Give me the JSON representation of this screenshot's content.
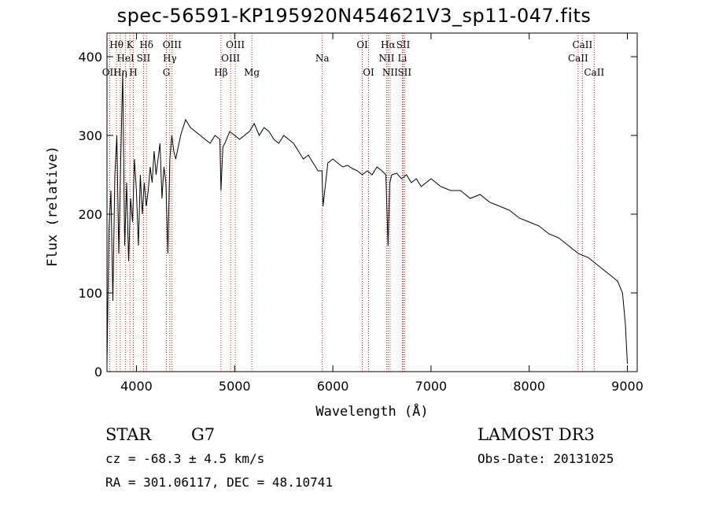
{
  "chart_data": {
    "type": "line",
    "title": "spec-56591-KP195920N454621V3_sp11-047.fits",
    "xlabel": "Wavelength (Å)",
    "ylabel": "Flux (relative)",
    "xlim": [
      3700,
      9100
    ],
    "ylim": [
      0,
      430
    ],
    "xticks": [
      4000,
      5000,
      6000,
      7000,
      8000,
      9000
    ],
    "yticks": [
      0,
      100,
      200,
      300,
      400
    ],
    "series": [
      {
        "name": "Flux",
        "x": [
          3700,
          3720,
          3740,
          3760,
          3780,
          3800,
          3820,
          3840,
          3860,
          3880,
          3900,
          3920,
          3940,
          3960,
          3980,
          4000,
          4020,
          4040,
          4060,
          4080,
          4100,
          4120,
          4140,
          4160,
          4180,
          4200,
          4220,
          4240,
          4260,
          4280,
          4300,
          4320,
          4340,
          4360,
          4380,
          4400,
          4450,
          4500,
          4550,
          4600,
          4650,
          4700,
          4750,
          4800,
          4850,
          4861,
          4880,
          4900,
          4950,
          5000,
          5050,
          5100,
          5150,
          5200,
          5250,
          5300,
          5350,
          5400,
          5450,
          5500,
          5550,
          5600,
          5650,
          5700,
          5750,
          5800,
          5850,
          5890,
          5900,
          5950,
          6000,
          6050,
          6100,
          6150,
          6200,
          6250,
          6300,
          6350,
          6400,
          6450,
          6500,
          6540,
          6563,
          6580,
          6600,
          6650,
          6700,
          6750,
          6800,
          6850,
          6900,
          6950,
          7000,
          7100,
          7200,
          7300,
          7400,
          7500,
          7600,
          7700,
          7800,
          7900,
          8000,
          8100,
          8200,
          8300,
          8400,
          8500,
          8600,
          8700,
          8800,
          8900,
          8950,
          8980,
          9000
        ],
        "y": [
          10,
          180,
          230,
          90,
          250,
          300,
          150,
          270,
          380,
          160,
          240,
          140,
          220,
          190,
          270,
          230,
          160,
          250,
          200,
          240,
          210,
          230,
          260,
          240,
          280,
          250,
          270,
          290,
          220,
          260,
          240,
          150,
          270,
          300,
          280,
          270,
          300,
          320,
          310,
          305,
          300,
          295,
          290,
          300,
          295,
          230,
          285,
          290,
          305,
          300,
          295,
          300,
          305,
          315,
          300,
          310,
          305,
          295,
          290,
          300,
          295,
          290,
          280,
          270,
          275,
          265,
          255,
          255,
          210,
          265,
          270,
          265,
          260,
          262,
          258,
          255,
          250,
          255,
          250,
          260,
          255,
          250,
          160,
          240,
          250,
          252,
          245,
          250,
          240,
          245,
          235,
          240,
          245,
          235,
          230,
          230,
          220,
          225,
          215,
          210,
          205,
          195,
          190,
          185,
          175,
          170,
          160,
          150,
          145,
          135,
          125,
          115,
          100,
          60,
          10
        ]
      }
    ],
    "lines": [
      {
        "label": "Hθ",
        "x": 3797,
        "row": 1
      },
      {
        "label": "OII",
        "x": 3727,
        "row": 3
      },
      {
        "label": "Hη",
        "x": 3835,
        "row": 3
      },
      {
        "label": "HeI",
        "x": 3889,
        "row": 2
      },
      {
        "label": "K",
        "x": 3934,
        "row": 1
      },
      {
        "label": "H",
        "x": 3968,
        "row": 3
      },
      {
        "label": "SII",
        "x": 4072,
        "row": 2
      },
      {
        "label": "Hδ",
        "x": 4102,
        "row": 1
      },
      {
        "label": "OIII",
        "x": 4363,
        "row": 1
      },
      {
        "label": "Hγ",
        "x": 4340,
        "row": 2
      },
      {
        "label": "G",
        "x": 4305,
        "row": 3
      },
      {
        "label": "Hβ",
        "x": 4861,
        "row": 3
      },
      {
        "label": "OIII",
        "x": 5007,
        "row": 1
      },
      {
        "label": "OIII",
        "x": 4959,
        "row": 2
      },
      {
        "label": "Mg",
        "x": 5175,
        "row": 3
      },
      {
        "label": "Na",
        "x": 5893,
        "row": 2
      },
      {
        "label": "OI",
        "x": 6300,
        "row": 1
      },
      {
        "label": "OI",
        "x": 6364,
        "row": 3
      },
      {
        "label": "Hα",
        "x": 6563,
        "row": 1
      },
      {
        "label": "NII",
        "x": 6548,
        "row": 2
      },
      {
        "label": "NII",
        "x": 6583,
        "row": 3
      },
      {
        "label": "SII",
        "x": 6717,
        "row": 1
      },
      {
        "label": "Li",
        "x": 6708,
        "row": 2
      },
      {
        "label": "SII",
        "x": 6731,
        "row": 3
      },
      {
        "label": "CaII",
        "x": 8542,
        "row": 1
      },
      {
        "label": "CaII",
        "x": 8498,
        "row": 2
      },
      {
        "label": "CaII",
        "x": 8662,
        "row": 3
      }
    ]
  },
  "footer": {
    "class": "STAR",
    "subclass": "G7",
    "survey": "LAMOST DR3",
    "cz": "cz = -68.3 ± 4.5 km/s",
    "obs_date": "Obs-Date: 20131025",
    "radec": "RA = 301.06117, DEC =  48.10741"
  }
}
